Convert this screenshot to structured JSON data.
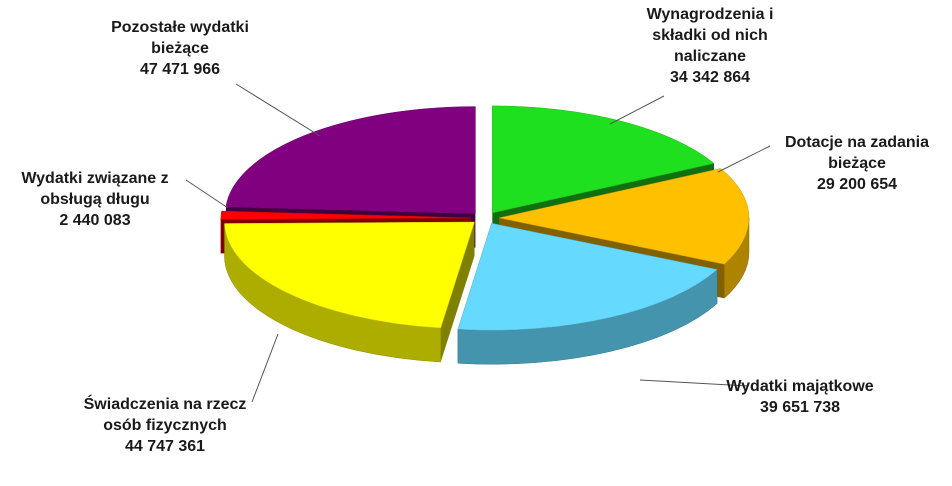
{
  "chart_data": {
    "type": "pie3d",
    "categories": [
      "Wynagrodzenia i składki od nich naliczane",
      "Dotacje na zadania bieżące",
      "Wydatki majątkowe",
      "Świadczenia na rzecz osób fizycznych",
      "Wydatki związane z obsługą długu",
      "Pozostałe wydatki bieżące"
    ],
    "values": [
      34342864,
      29200654,
      39651738,
      44747361,
      2440083,
      47471966
    ],
    "value_labels": [
      "34 342 864",
      "29 200 654",
      "39 651 738",
      "44 747 361",
      "2 440 083",
      "47 471 966"
    ],
    "colors": [
      "#1fe01f",
      "#ffc000",
      "#66d9ff",
      "#ffff00",
      "#ff0000",
      "#800080"
    ]
  }
}
